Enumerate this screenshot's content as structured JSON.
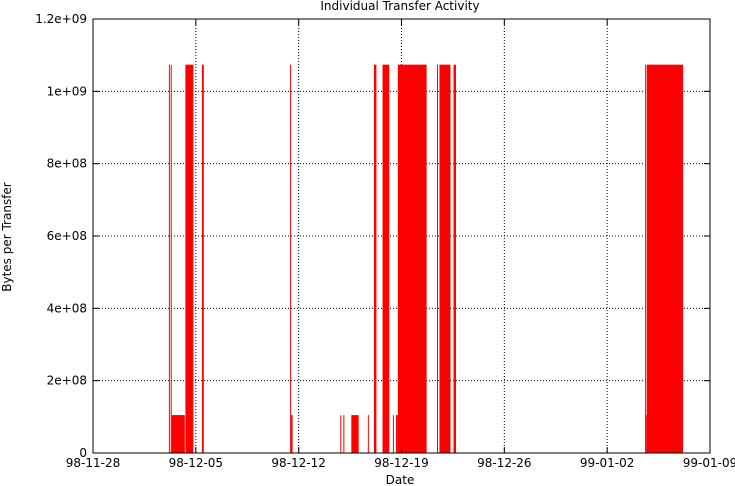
{
  "chart_data": {
    "type": "bar",
    "title": "Individual Transfer Activity",
    "xlabel": "Date",
    "ylabel": "Bytes per Transfer",
    "x_scale": "date",
    "x_range": [
      "1998-11-28",
      "1999-01-09"
    ],
    "x_ticks": [
      {
        "date": "1998-11-28",
        "label": "98-11-28"
      },
      {
        "date": "1998-12-05",
        "label": "98-12-05"
      },
      {
        "date": "1998-12-12",
        "label": "98-12-12"
      },
      {
        "date": "1998-12-19",
        "label": "98-12-19"
      },
      {
        "date": "1998-12-26",
        "label": "98-12-26"
      },
      {
        "date": "1999-01-02",
        "label": "99-01-02"
      },
      {
        "date": "1999-01-09",
        "label": "99-01-09"
      }
    ],
    "ylim": [
      0,
      1200000000
    ],
    "y_ticks": [
      {
        "value": 0,
        "label": "0"
      },
      {
        "value": 200000000,
        "label": "2e+08"
      },
      {
        "value": 400000000,
        "label": "4e+08"
      },
      {
        "value": 600000000,
        "label": "6e+08"
      },
      {
        "value": 800000000,
        "label": "8e+08"
      },
      {
        "value": 1000000000,
        "label": "1e+09"
      },
      {
        "value": 1200000000,
        "label": "1.2e+09"
      }
    ],
    "grid": true,
    "grid_style": "dotted",
    "color": "#ff0000",
    "series": [
      {
        "bars": [
          {
            "start": "1998-12-03T04:00",
            "end": "1998-12-03T05:00",
            "value": 1073741824
          },
          {
            "start": "1998-12-03T07:00",
            "end": "1998-12-03T08:30",
            "value": 1073741824
          },
          {
            "start": "1998-12-03T08:30",
            "end": "1998-12-04T06:00",
            "value": 104857600
          },
          {
            "start": "1998-12-04T07:00",
            "end": "1998-12-04T20:00",
            "value": 1073741824
          },
          {
            "start": "1998-12-05T10:00",
            "end": "1998-12-05T13:00",
            "value": 1073741824
          },
          {
            "start": "1998-12-11T10:00",
            "end": "1998-12-11T11:30",
            "value": 1073741824
          },
          {
            "start": "1998-12-11T11:30",
            "end": "1998-12-11T14:00",
            "value": 104857600
          },
          {
            "start": "1998-12-14T20:00",
            "end": "1998-12-14T21:00",
            "value": 104857600
          },
          {
            "start": "1998-12-15T01:00",
            "end": "1998-12-15T02:00",
            "value": 104857600
          },
          {
            "start": "1998-12-15T14:00",
            "end": "1998-12-16T02:00",
            "value": 104857600
          },
          {
            "start": "1998-12-16T17:00",
            "end": "1998-12-16T18:00",
            "value": 104857600
          },
          {
            "start": "1998-12-17T03:00",
            "end": "1998-12-17T07:00",
            "value": 1073741824
          },
          {
            "start": "1998-12-17T17:00",
            "end": "1998-12-18T04:00",
            "value": 1073741824
          },
          {
            "start": "1998-12-18T10:00",
            "end": "1998-12-18T11:00",
            "value": 104857600
          },
          {
            "start": "1998-12-18T15:00",
            "end": "1998-12-18T18:00",
            "value": 104857600
          },
          {
            "start": "1998-12-18T18:00",
            "end": "1998-12-20T17:00",
            "value": 1073741824
          },
          {
            "start": "1998-12-21T10:00",
            "end": "1998-12-21T11:00",
            "value": 1073741824
          },
          {
            "start": "1998-12-21T14:00",
            "end": "1998-12-22T08:00",
            "value": 1073741824
          },
          {
            "start": "1998-12-22T13:00",
            "end": "1998-12-22T17:00",
            "value": 1073741824
          },
          {
            "start": "1999-01-04T14:00",
            "end": "1999-01-04T16:00",
            "value": 1073741824
          },
          {
            "start": "1999-01-04T16:00",
            "end": "1999-01-04T17:00",
            "value": 104857600
          },
          {
            "start": "1999-01-04T17:00",
            "end": "1999-01-07T04:00",
            "value": 1073741824
          }
        ]
      }
    ]
  }
}
